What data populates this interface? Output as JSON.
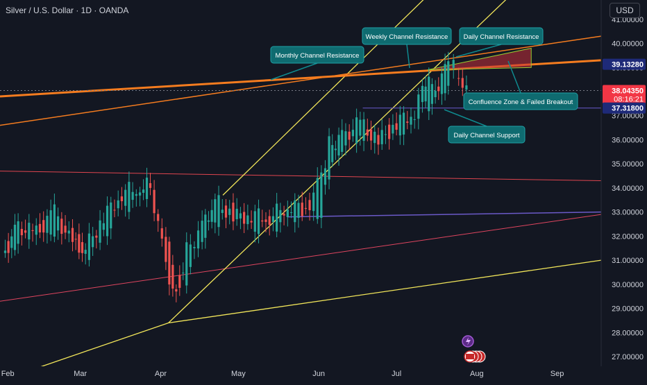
{
  "header": {
    "symbol_title": "Silver / U.S. Dollar · 1D · OANDA",
    "currency": "USD"
  },
  "colors": {
    "background": "#131722",
    "up": "#26a69a",
    "down": "#ef5350",
    "yellow": "#f2e65a",
    "orange": "#f57c1f",
    "label_bg": "#0f6b70",
    "axis_text": "#d1d4dc"
  },
  "chart_data": {
    "type": "candlestick",
    "title": "Silver / U.S. Dollar · 1D · OANDA",
    "x_tick_labels": [
      "Feb",
      "Mar",
      "Apr",
      "May",
      "Jun",
      "Jul",
      "Aug",
      "Sep"
    ],
    "x_tick_dates": [
      "2025-02-01",
      "2025-03-01",
      "2025-04-01",
      "2025-05-01",
      "2025-06-01",
      "2025-07-01",
      "2025-08-01",
      "2025-09-01"
    ],
    "y_tick_labels": [
      "27.00000",
      "28.00000",
      "29.00000",
      "30.00000",
      "31.00000",
      "32.00000",
      "33.00000",
      "34.00000",
      "35.00000",
      "36.00000",
      "37.00000",
      "38.00000",
      "39.00000",
      "40.00000",
      "41.00000"
    ],
    "ylim": [
      26.6,
      41.8
    ],
    "xlim": [
      "2025-01-29",
      "2025-09-18"
    ],
    "ohlc_approx": [
      [
        "2025-01-31",
        31.3,
        31.6,
        31.0,
        31.4
      ],
      [
        "2025-02-05",
        31.9,
        32.5,
        31.8,
        32.4
      ],
      [
        "2025-02-12",
        32.4,
        32.8,
        31.9,
        32.1
      ],
      [
        "2025-02-19",
        32.3,
        33.4,
        32.1,
        33.0
      ],
      [
        "2025-02-26",
        32.5,
        32.6,
        31.4,
        31.6
      ],
      [
        "2025-03-03",
        31.2,
        31.6,
        30.9,
        31.5
      ],
      [
        "2025-03-10",
        32.0,
        33.0,
        31.9,
        32.8
      ],
      [
        "2025-03-17",
        33.3,
        34.0,
        33.0,
        33.8
      ],
      [
        "2025-03-24",
        33.4,
        34.3,
        33.2,
        34.1
      ],
      [
        "2025-03-28",
        34.1,
        34.6,
        33.6,
        34.1
      ],
      [
        "2025-04-03",
        32.1,
        32.3,
        30.5,
        30.8
      ],
      [
        "2025-04-07",
        30.1,
        30.2,
        28.4,
        29.4
      ],
      [
        "2025-04-11",
        30.3,
        31.6,
        30.1,
        31.4
      ],
      [
        "2025-04-17",
        32.0,
        32.6,
        31.8,
        32.4
      ],
      [
        "2025-04-22",
        32.6,
        33.8,
        32.3,
        33.5
      ],
      [
        "2025-04-29",
        33.2,
        33.6,
        32.5,
        32.8
      ],
      [
        "2025-05-06",
        32.3,
        33.0,
        32.0,
        32.9
      ],
      [
        "2025-05-13",
        32.5,
        33.0,
        32.2,
        32.8
      ],
      [
        "2025-05-20",
        32.6,
        33.4,
        32.3,
        33.3
      ],
      [
        "2025-05-27",
        33.2,
        33.5,
        32.8,
        33.1
      ],
      [
        "2025-06-02",
        33.0,
        34.6,
        32.9,
        34.4
      ],
      [
        "2025-06-05",
        34.7,
        35.9,
        34.5,
        35.8
      ],
      [
        "2025-06-10",
        35.8,
        36.4,
        35.5,
        36.1
      ],
      [
        "2025-06-17",
        36.3,
        37.3,
        36.0,
        36.7
      ],
      [
        "2025-06-24",
        36.1,
        36.8,
        35.6,
        35.9
      ],
      [
        "2025-07-01",
        36.4,
        36.9,
        35.9,
        36.7
      ],
      [
        "2025-07-08",
        36.5,
        37.4,
        36.3,
        37.2
      ],
      [
        "2025-07-11",
        37.3,
        38.6,
        37.1,
        38.5
      ],
      [
        "2025-07-16",
        37.7,
        38.3,
        37.5,
        38.1
      ],
      [
        "2025-07-21",
        38.4,
        39.3,
        38.2,
        39.1
      ],
      [
        "2025-07-23",
        39.3,
        39.5,
        38.8,
        39.0
      ],
      [
        "2025-07-25",
        38.9,
        39.2,
        37.9,
        38.2
      ],
      [
        "2025-07-28",
        38.3,
        38.4,
        37.9,
        38.04
      ]
    ],
    "price_lines": [
      {
        "price": 39.1328,
        "label": "39.13280"
      },
      {
        "price": 38.0435,
        "label": "38.04350",
        "countdown": "08:16:21"
      },
      {
        "price": 37.318,
        "label": "37.31800"
      }
    ],
    "annotations": [
      "Weekly Channel Resistance",
      "Daily Channel Resistance",
      "Monthly Channel Resistance",
      "Confluence Zone & Failed Breakout",
      "Daily Channel Support"
    ]
  }
}
